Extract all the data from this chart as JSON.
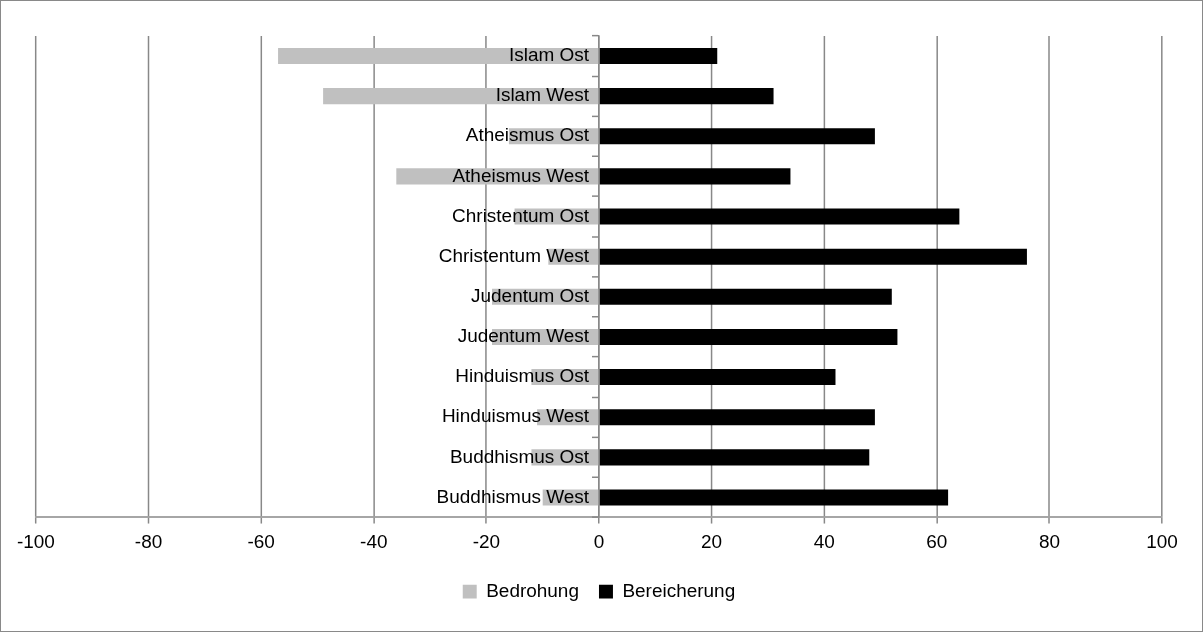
{
  "chart_data": {
    "type": "bar",
    "orientation": "horizontal",
    "stacked": true,
    "categories": [
      "Islam Ost",
      "Islam West",
      "Atheismus Ost",
      "Atheismus West",
      "Christentum Ost",
      "Christentum West",
      "Judentum Ost",
      "Judentum West",
      "Hinduismus Ost",
      "Hinduismus West",
      "Buddhismus Ost",
      "Buddhismus West"
    ],
    "series": [
      {
        "name": "Bedrohung",
        "color": "#c0c0c0",
        "values": [
          -57,
          -49,
          -16,
          -36,
          -15,
          -9,
          -19,
          -19,
          -12,
          -11,
          -12,
          -10
        ]
      },
      {
        "name": "Bereicherung",
        "color": "#000000",
        "values": [
          21,
          31,
          49,
          34,
          64,
          76,
          52,
          53,
          42,
          49,
          48,
          62
        ]
      }
    ],
    "xlim": [
      -100,
      100
    ],
    "xticks": [
      -100,
      -80,
      -60,
      -40,
      -20,
      0,
      20,
      40,
      60,
      80,
      100
    ],
    "grid": "x",
    "legend": "bottom"
  }
}
